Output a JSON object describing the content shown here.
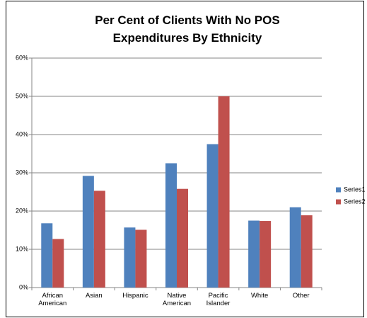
{
  "chart_data": {
    "type": "bar",
    "title": "Per Cent of Clients With No POS Expenditures By Ethnicity",
    "categories": [
      "African American",
      "Asian",
      "Hispanic",
      "Native American",
      "Pacific Islander",
      "White",
      "Other"
    ],
    "series": [
      {
        "name": "Series1",
        "color": "#4f81bd",
        "values": [
          16.8,
          29.2,
          15.7,
          32.5,
          37.5,
          17.5,
          21.0
        ]
      },
      {
        "name": "Series2",
        "color": "#c0504d",
        "values": [
          12.7,
          25.3,
          15.1,
          25.8,
          50.0,
          17.4,
          18.9
        ]
      }
    ],
    "ylim": [
      0,
      60
    ],
    "yticks": [
      {
        "value": 0,
        "label": "0%"
      },
      {
        "value": 10,
        "label": "10%"
      },
      {
        "value": 20,
        "label": "20%"
      },
      {
        "value": 30,
        "label": "30%"
      },
      {
        "value": 40,
        "label": "40%"
      },
      {
        "value": 50,
        "label": "50%"
      },
      {
        "value": 60,
        "label": "60%"
      }
    ],
    "grid": true,
    "legend": "right"
  }
}
